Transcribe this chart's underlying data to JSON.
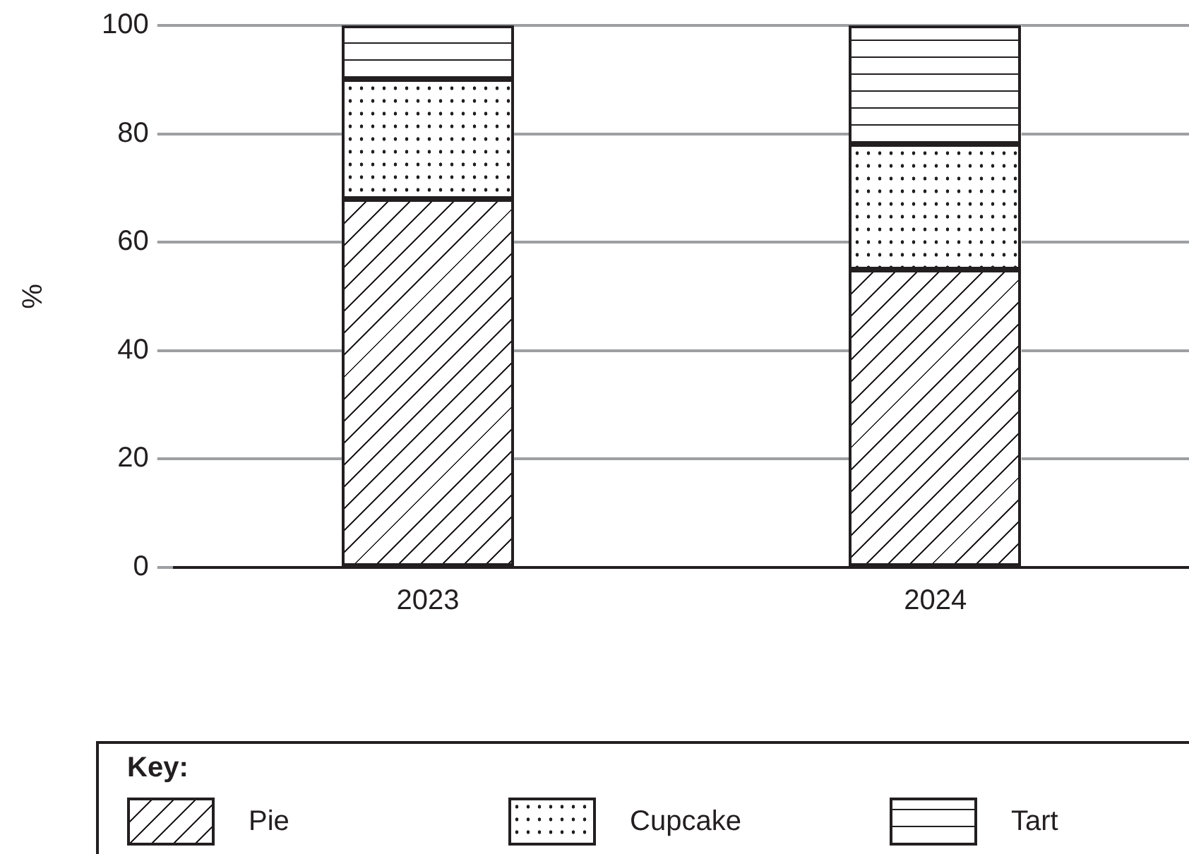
{
  "chart_data": {
    "type": "bar",
    "stacked": true,
    "ylabel": "%",
    "categories": [
      "2023",
      "2024"
    ],
    "series": [
      {
        "name": "Pie",
        "color": "#ffffff",
        "values": [
          68,
          55
        ]
      },
      {
        "name": "Cupcake",
        "color": "#ffffff",
        "values": [
          22,
          23
        ]
      },
      {
        "name": "Tart",
        "color": "#ffffff",
        "values": [
          10,
          22
        ]
      }
    ],
    "ylim": [
      0,
      100
    ],
    "yticks": [
      0,
      20,
      40,
      60,
      80,
      100
    ],
    "grid": "y",
    "legend": "bottom",
    "legend_title": "Key:"
  }
}
